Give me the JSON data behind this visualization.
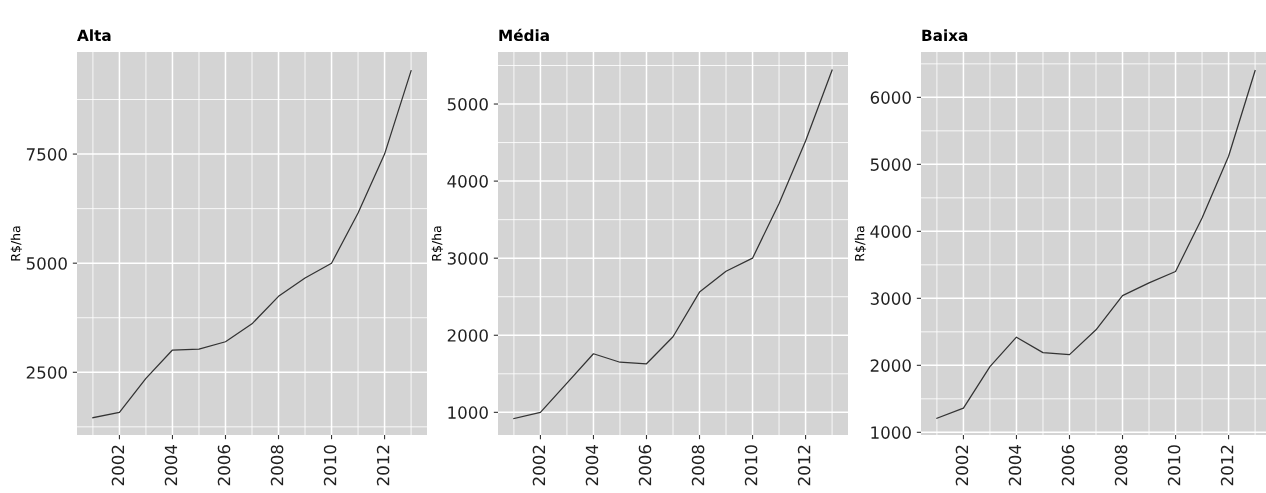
{
  "chart_data": [
    {
      "type": "line",
      "title": "Alta",
      "ylabel": "R$/ha",
      "x": [
        2001,
        2002,
        2003,
        2004,
        2005,
        2006,
        2007,
        2008,
        2009,
        2010,
        2011,
        2012,
        2013
      ],
      "series": [
        {
          "color": "#333333",
          "values": [
            1460,
            1580,
            2360,
            3010,
            3030,
            3200,
            3610,
            4240,
            4660,
            5000,
            6150,
            7500,
            9410
          ]
        }
      ],
      "xlim": [
        2000.4,
        2013.6
      ],
      "xticks": [
        2002,
        2004,
        2006,
        2008,
        2010,
        2012
      ],
      "ylim": [
        1063,
        9839
      ],
      "yticks": [
        2500,
        5000,
        7500
      ],
      "grid": true,
      "legend": false,
      "marker": "none",
      "line_style": "solid"
    },
    {
      "type": "line",
      "title": "Média",
      "ylabel": "R$/ha",
      "x": [
        2001,
        2002,
        2003,
        2004,
        2005,
        2006,
        2007,
        2008,
        2009,
        2010,
        2011,
        2012,
        2013
      ],
      "series": [
        {
          "color": "#333333",
          "values": [
            920,
            1000,
            1380,
            1760,
            1650,
            1630,
            1980,
            2560,
            2830,
            3000,
            3710,
            4520,
            5440
          ]
        }
      ],
      "xlim": [
        2000.4,
        2013.6
      ],
      "xticks": [
        2002,
        2004,
        2006,
        2008,
        2010,
        2012
      ],
      "ylim": [
        706,
        5675
      ],
      "yticks": [
        1000,
        2000,
        3000,
        4000,
        5000
      ],
      "grid": true,
      "legend": false,
      "marker": "none",
      "line_style": "solid"
    },
    {
      "type": "line",
      "title": "Baixa",
      "ylabel": "R$/ha",
      "x": [
        2001,
        2002,
        2003,
        2004,
        2005,
        2006,
        2007,
        2008,
        2009,
        2010,
        2011,
        2012,
        2013
      ],
      "series": [
        {
          "color": "#333333",
          "values": [
            1210,
            1360,
            1980,
            2420,
            2190,
            2160,
            2530,
            3040,
            3230,
            3400,
            4200,
            5120,
            6400
          ]
        }
      ],
      "xlim": [
        2000.4,
        2013.6
      ],
      "xticks": [
        2002,
        2004,
        2006,
        2008,
        2010,
        2012
      ],
      "ylim": [
        960,
        6677
      ],
      "yticks": [
        1000,
        2000,
        3000,
        4000,
        5000,
        6000
      ],
      "grid": true,
      "legend": false,
      "marker": "none",
      "line_style": "solid"
    }
  ]
}
